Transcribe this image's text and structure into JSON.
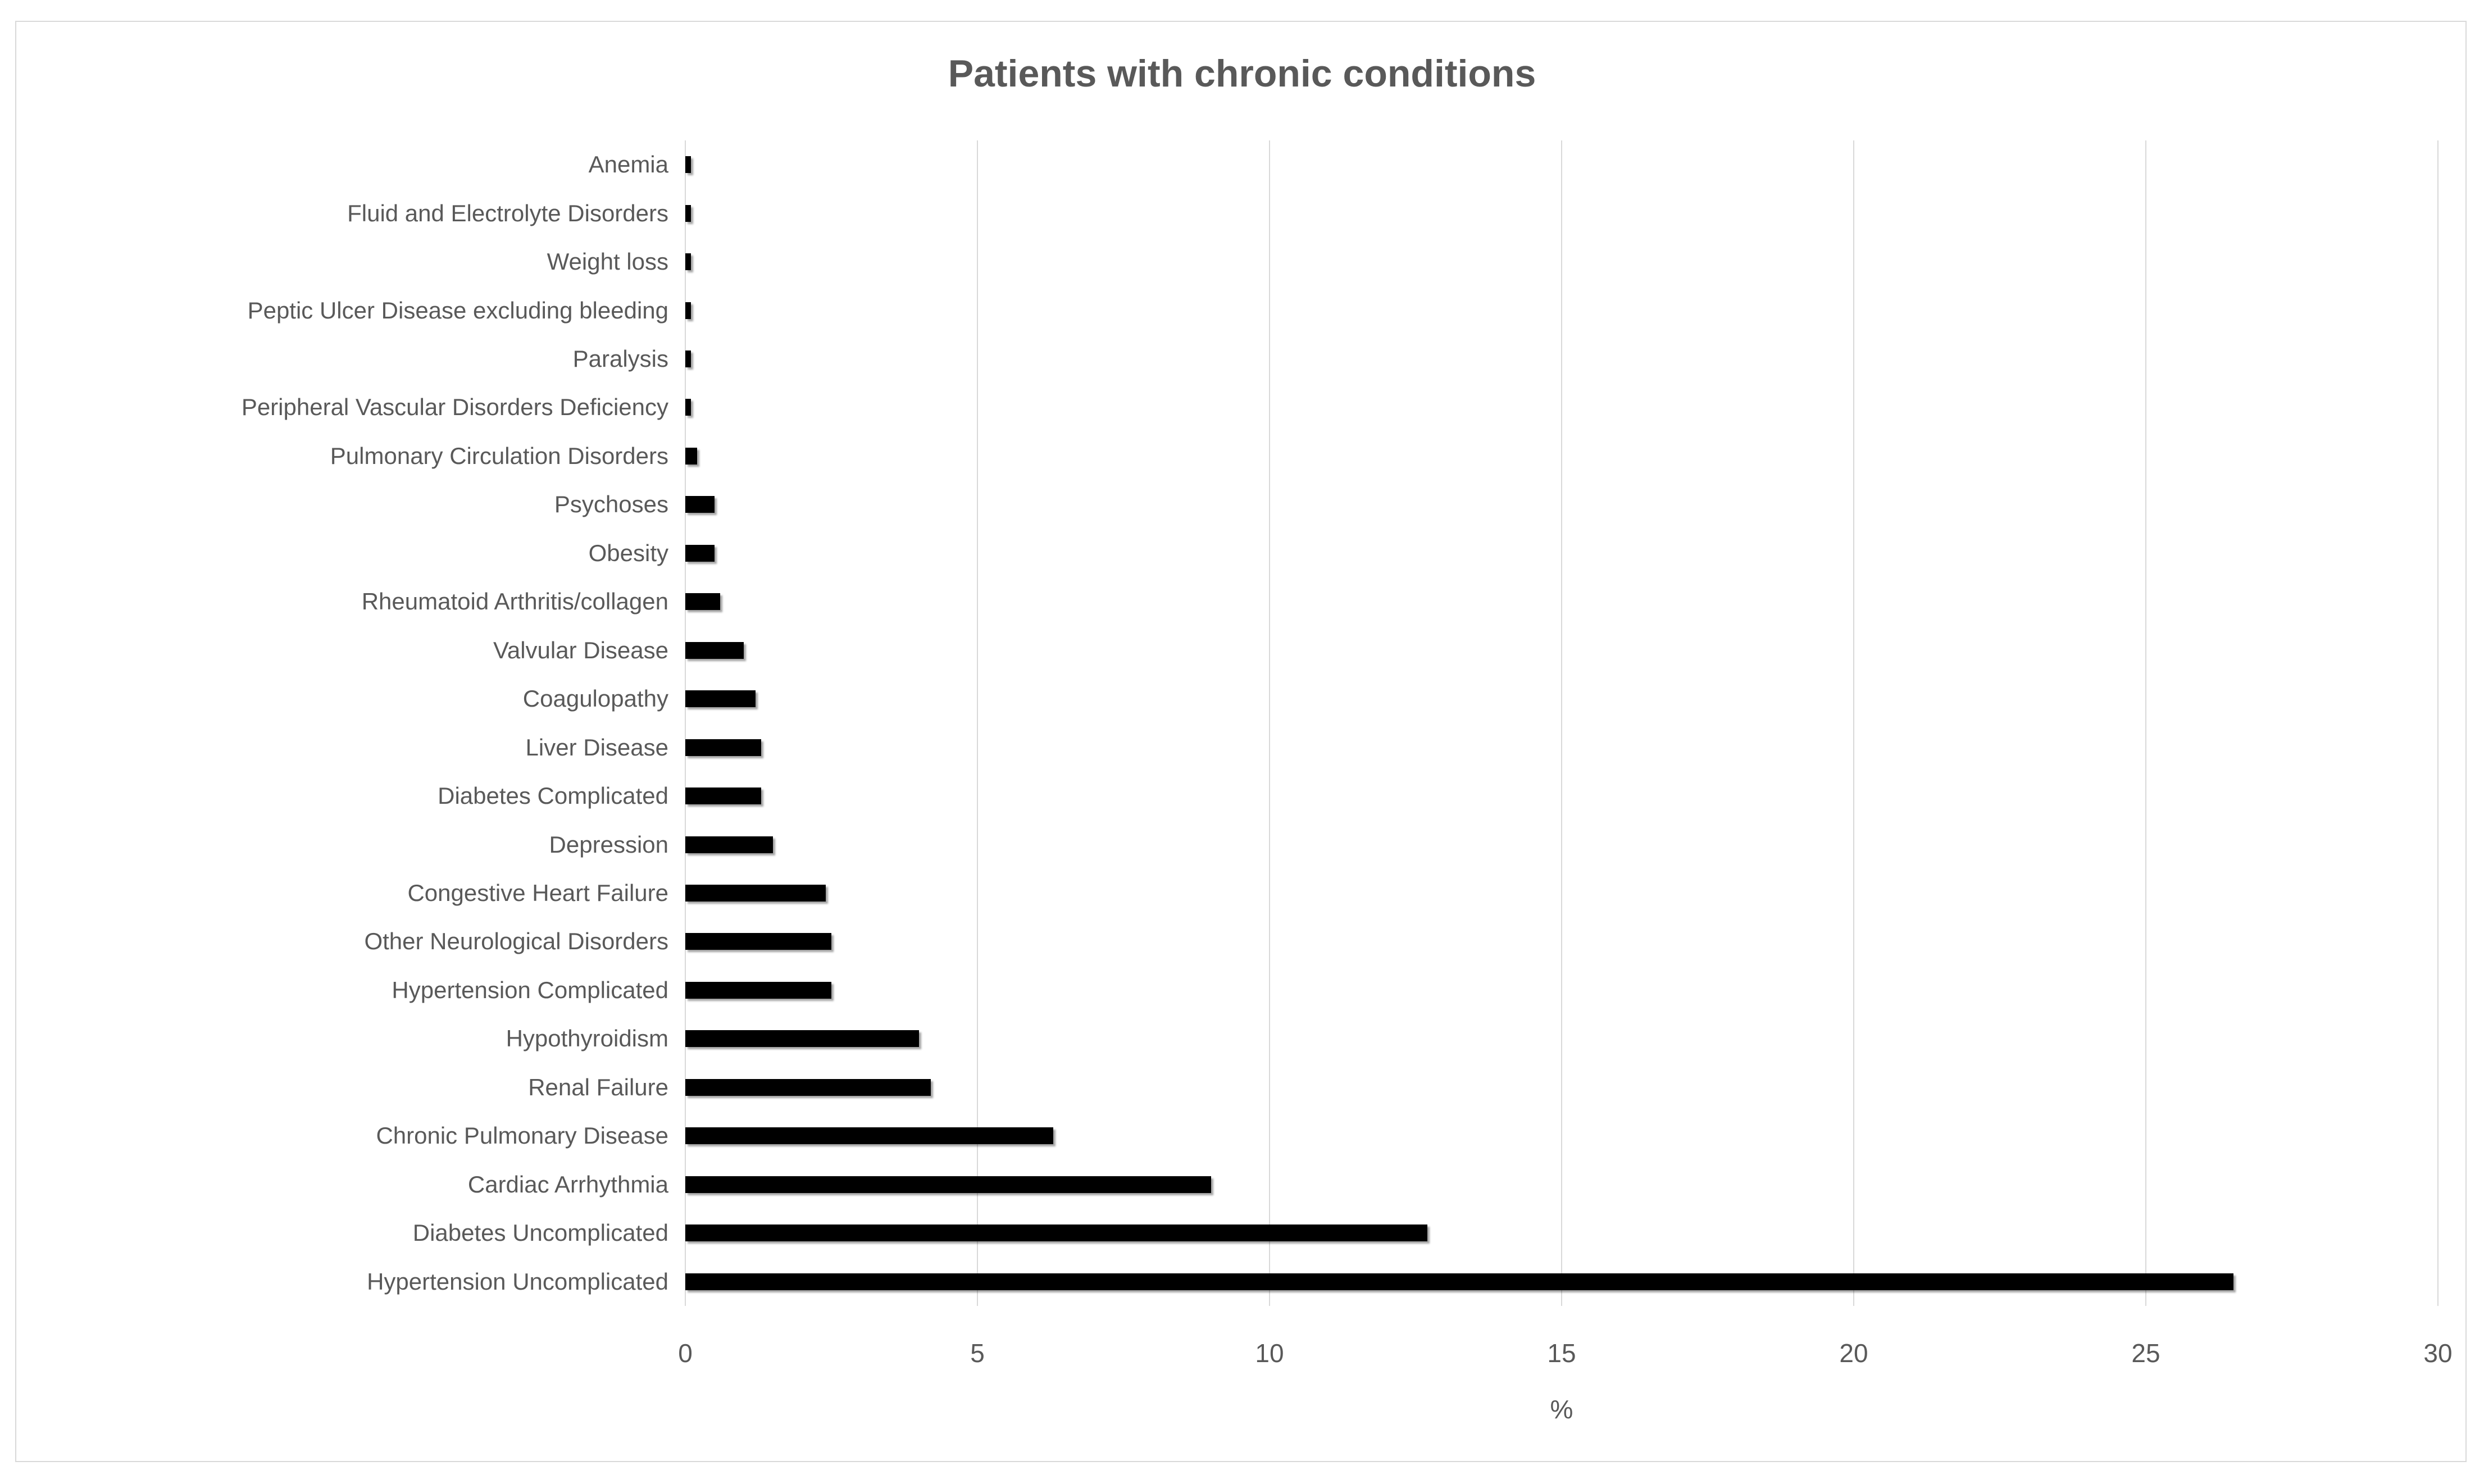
{
  "styles": {
    "background": "#ffffff",
    "border_color": "#d9d9d9",
    "gridline_color": "#d9d9d9",
    "text_color": "#595959",
    "bar_color": "#000000"
  },
  "chart_data": {
    "type": "bar",
    "orientation": "horizontal",
    "title": "Patients with chronic conditions",
    "xlabel": "%",
    "xlim": [
      0,
      30
    ],
    "xticks": [
      0,
      5,
      10,
      15,
      20,
      25,
      30
    ],
    "grid": true,
    "legend": false,
    "categories": [
      "Anemia",
      "Fluid and Electrolyte Disorders",
      "Weight loss",
      "Peptic Ulcer Disease excluding bleeding",
      "Paralysis",
      "Peripheral Vascular Disorders Deficiency",
      "Pulmonary Circulation Disorders",
      "Psychoses",
      "Obesity",
      "Rheumatoid Arthritis/collagen",
      "Valvular Disease",
      "Coagulopathy",
      "Liver Disease",
      "Diabetes Complicated",
      "Depression",
      "Congestive Heart Failure",
      "Other Neurological Disorders",
      "Hypertension Complicated",
      "Hypothyroidism",
      "Renal Failure",
      "Chronic Pulmonary Disease",
      "Cardiac Arrhythmia",
      "Diabetes Uncomplicated",
      "Hypertension Uncomplicated"
    ],
    "values": [
      0.1,
      0.1,
      0.1,
      0.1,
      0.1,
      0.1,
      0.2,
      0.5,
      0.5,
      0.6,
      1.0,
      1.2,
      1.3,
      1.3,
      1.5,
      2.4,
      2.5,
      2.5,
      4.0,
      4.2,
      6.3,
      9.0,
      12.7,
      26.5
    ]
  }
}
